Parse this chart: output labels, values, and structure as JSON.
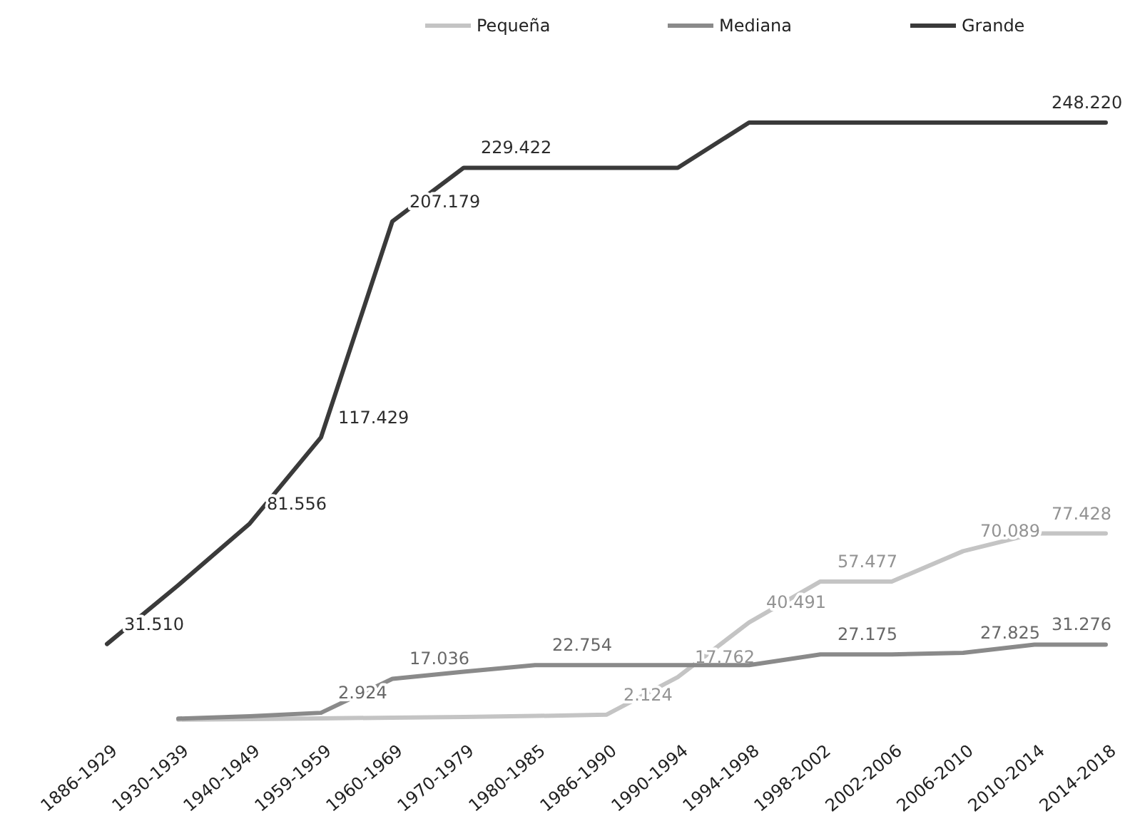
{
  "chart_data": {
    "type": "line",
    "categories": [
      "1886-1929",
      "1930-1939",
      "1940-1949",
      "1959-1959",
      "1960-1969",
      "1970-1979",
      "1980-1985",
      "1986-1990",
      "1990-1994",
      "1994-1998",
      "1998-2002",
      "2002-2006",
      "2006-2010",
      "2010-2014",
      "2014-2018"
    ],
    "series": [
      {
        "name": "Pequeña",
        "color": "#c4c4c4",
        "values": [
          null,
          100,
          300,
          600,
          900,
          1200,
          1600,
          2124,
          17762,
          40491,
          57477,
          57477,
          70089,
          77428,
          77428
        ],
        "value_labels": [
          null,
          null,
          null,
          null,
          null,
          null,
          null,
          "2.124",
          "17.762",
          "40.491",
          "57.477",
          null,
          "70.089",
          "77.428",
          null
        ]
      },
      {
        "name": "Mediana",
        "color": "#8a8a8a",
        "values": [
          null,
          500,
          1500,
          2924,
          17036,
          20000,
          22754,
          22754,
          22754,
          22754,
          27175,
          27175,
          27825,
          31276,
          31276
        ],
        "value_labels": [
          null,
          null,
          null,
          "2.924",
          "17.036",
          null,
          "22.754",
          null,
          null,
          null,
          "27.175",
          null,
          "27.825",
          "31.276",
          null
        ]
      },
      {
        "name": "Grande",
        "color": "#3a3a3a",
        "values": [
          31510,
          56000,
          81556,
          117429,
          207179,
          229422,
          229422,
          229422,
          229422,
          248220,
          248220,
          248220,
          248220,
          248220,
          248220
        ],
        "value_labels": [
          "31.510",
          null,
          "81.556",
          "117.429",
          "207.179",
          "229.422",
          null,
          null,
          null,
          null,
          null,
          null,
          null,
          "248.220",
          null
        ]
      }
    ],
    "legend": "top",
    "grid": false,
    "marker": "none",
    "line_style": "solid"
  }
}
